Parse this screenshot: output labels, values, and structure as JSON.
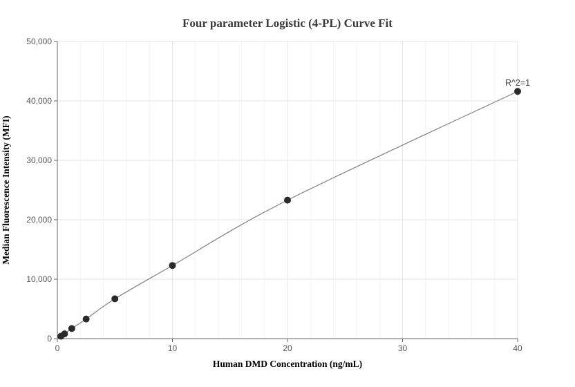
{
  "chart_data": {
    "type": "scatter",
    "title": "Four parameter Logistic (4-PL) Curve Fit",
    "xlabel": "Human DMD Concentration (ng/mL)",
    "ylabel": "Median Fluorescence Intensity (MFI)",
    "xlim": [
      0,
      40
    ],
    "ylim": [
      0,
      50000
    ],
    "x_ticks": [
      0,
      10,
      20,
      30,
      40
    ],
    "y_ticks": [
      0,
      10000,
      20000,
      30000,
      40000,
      50000
    ],
    "x_tick_labels": [
      "0",
      "10",
      "20",
      "30",
      "40"
    ],
    "y_tick_labels": [
      "0",
      "10,000",
      "20,000",
      "30,000",
      "40,000",
      "50,000"
    ],
    "grid": true,
    "series": [
      {
        "points": [
          {
            "x": 0.3125,
            "y": 400
          },
          {
            "x": 0.625,
            "y": 800
          },
          {
            "x": 1.25,
            "y": 1700
          },
          {
            "x": 2.5,
            "y": 3300
          },
          {
            "x": 5,
            "y": 6700
          },
          {
            "x": 10,
            "y": 12300
          },
          {
            "x": 20,
            "y": 23300
          },
          {
            "x": 40,
            "y": 41600
          }
        ]
      }
    ],
    "annotation": "R^2=1",
    "colors": {
      "points": "#2b2b2b",
      "curve": "#808080",
      "grid": "#e6e6e6",
      "axis": "#666666"
    }
  }
}
